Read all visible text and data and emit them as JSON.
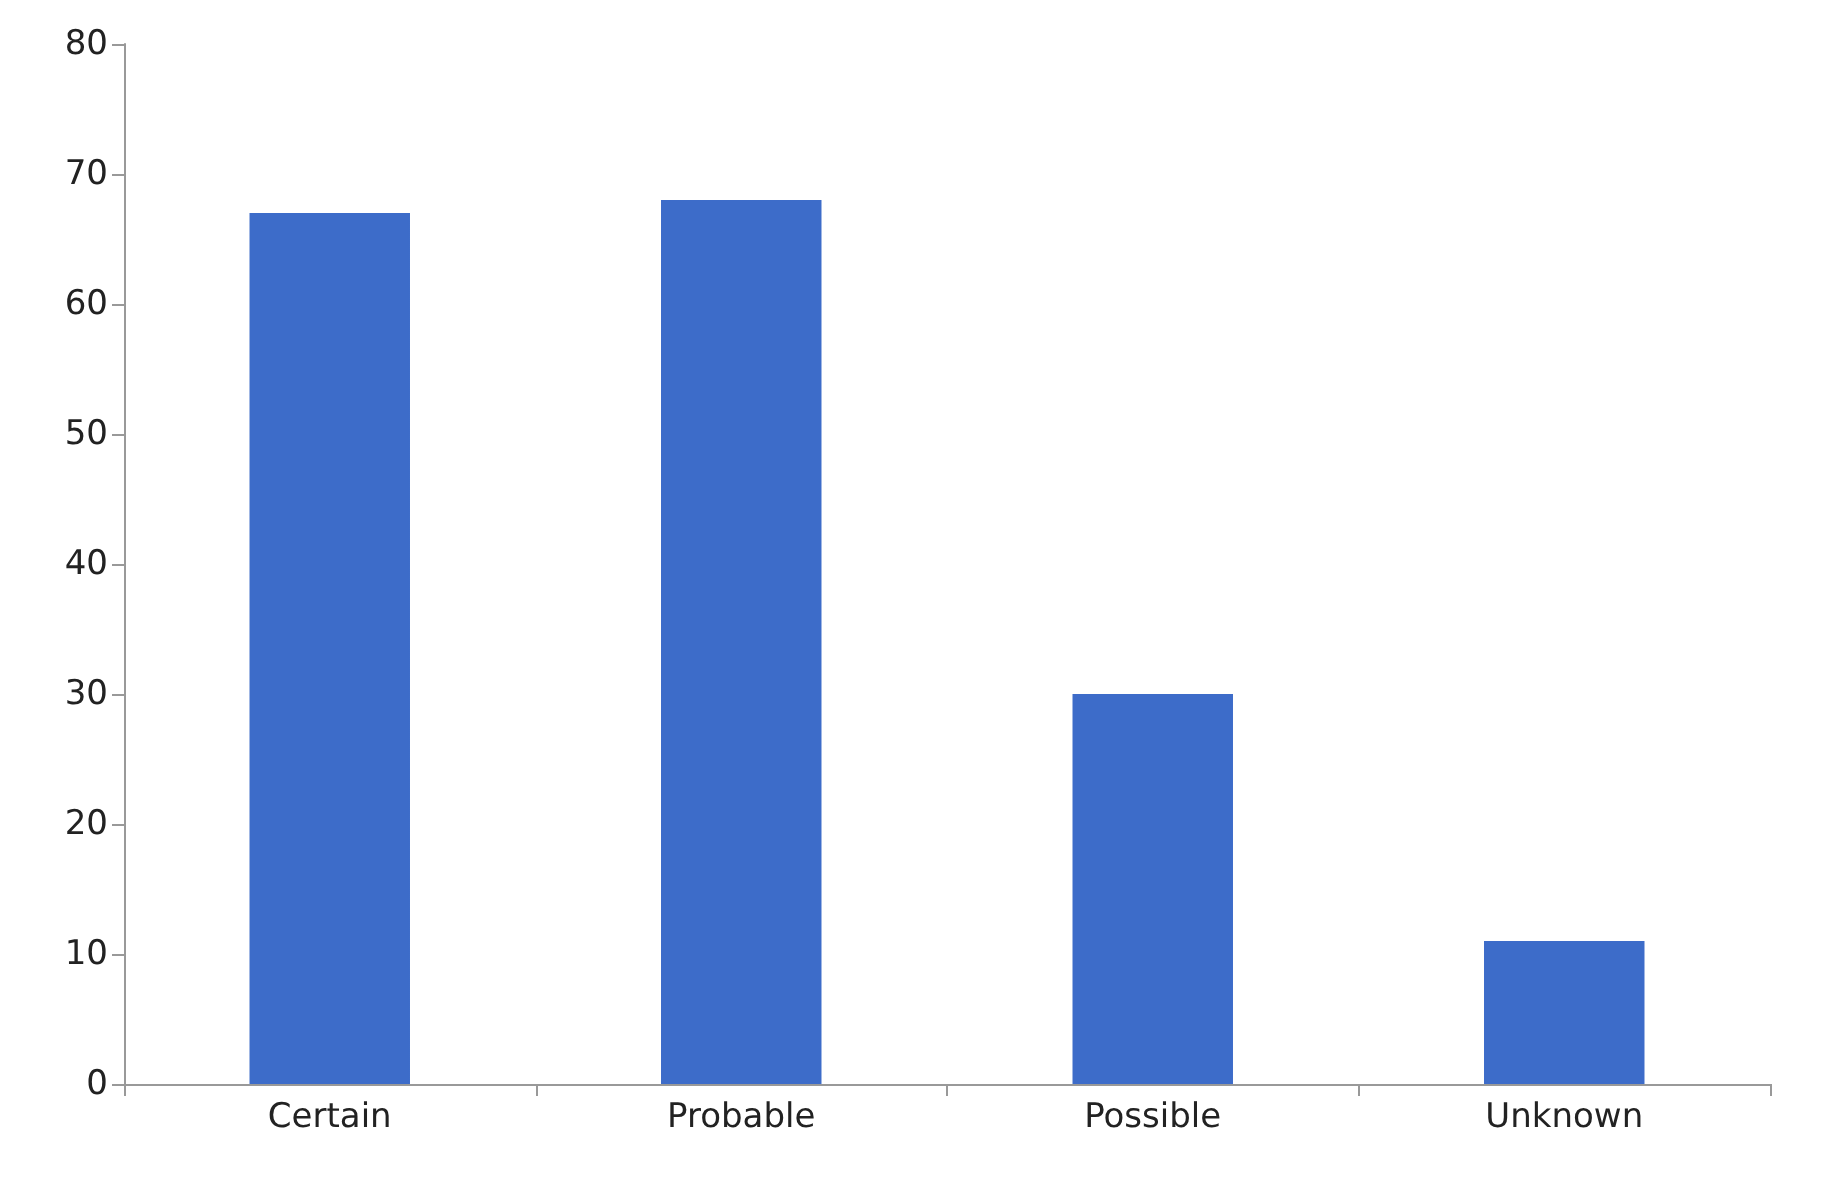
{
  "chart_data": {
    "type": "bar",
    "categories": [
      "Certain",
      "Probable",
      "Possible",
      "Unknown"
    ],
    "values": [
      67,
      68,
      30,
      11
    ],
    "color": "#3d6cc9",
    "ylim": [
      0,
      80
    ],
    "yticks": [
      0,
      10,
      20,
      30,
      40,
      50,
      60,
      70,
      80
    ],
    "grid": false
  }
}
